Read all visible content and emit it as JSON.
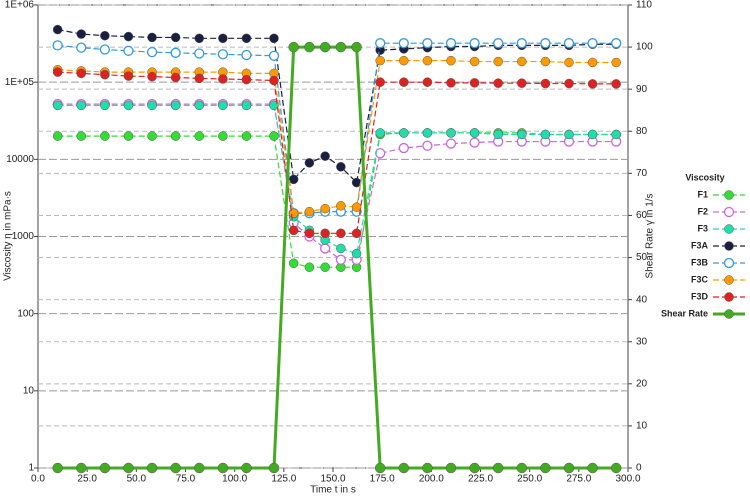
{
  "chart_data": {
    "type": "line",
    "xlabel": "Time t in s",
    "ylabel": "Viscosity η in mPa·s",
    "y2label": "Shear Rate γ̇ in 1/s",
    "legend_title": "Viscosity",
    "legend": "right",
    "log_y": true,
    "grid": true,
    "x": [
      10,
      22,
      34,
      46,
      58,
      70,
      82,
      94,
      106,
      120,
      130,
      138,
      146,
      154,
      162,
      174,
      186,
      198,
      210,
      222,
      234,
      246,
      258,
      270,
      282,
      294
    ],
    "xlim": [
      0,
      300
    ],
    "xticks": [
      {
        "value": 0,
        "label": "0.0"
      },
      {
        "value": 25,
        "label": "25.0"
      },
      {
        "value": 50,
        "label": "50.0"
      },
      {
        "value": 75,
        "label": "75.0"
      },
      {
        "value": 100,
        "label": "100.0"
      },
      {
        "value": 125,
        "label": "125.0"
      },
      {
        "value": 150,
        "label": "150.0"
      },
      {
        "value": 175,
        "label": "175.0"
      },
      {
        "value": 200,
        "label": "200.0"
      },
      {
        "value": 225,
        "label": "225.0"
      },
      {
        "value": 250,
        "label": "250.0"
      },
      {
        "value": 275,
        "label": "275.0"
      },
      {
        "value": 300,
        "label": "300.0"
      }
    ],
    "ylim": [
      1,
      1000000
    ],
    "yticks": [
      1,
      10,
      100,
      1000,
      10000,
      {
        "value": 100000,
        "label": "1E+05"
      },
      {
        "value": 1000000,
        "label": "1E+06"
      }
    ],
    "y2lim": [
      0,
      110
    ],
    "y2ticks": [
      0,
      10,
      20,
      30,
      40,
      50,
      60,
      70,
      80,
      90,
      100,
      110
    ],
    "series": [
      {
        "name": "F1",
        "color": "#33dd33",
        "marker": "filled",
        "values": [
          20000,
          20000,
          20000,
          20000,
          20000,
          20000,
          20000,
          20000,
          20000,
          20000,
          450,
          400,
          400,
          400,
          400,
          21000,
          22000,
          22000,
          22000,
          22000,
          22000,
          22000,
          21000,
          21000,
          21000,
          21000
        ]
      },
      {
        "name": "F2",
        "color": "#cc66dd",
        "marker": "open",
        "values": [
          52000,
          52000,
          52000,
          52000,
          52000,
          52000,
          52000,
          52000,
          52000,
          52000,
          1500,
          1000,
          700,
          500,
          500,
          12000,
          14000,
          15000,
          16000,
          16500,
          17000,
          17000,
          17000,
          17000,
          17000,
          17000
        ]
      },
      {
        "name": "F3",
        "color": "#22ddaa",
        "marker": "filled",
        "values": [
          50000,
          50000,
          50000,
          50000,
          50000,
          50000,
          50000,
          50000,
          50000,
          50000,
          1800,
          1200,
          900,
          700,
          600,
          22000,
          22000,
          22000,
          22000,
          22000,
          21000,
          21000,
          21000,
          21000,
          21000,
          21000
        ]
      },
      {
        "name": "F3A",
        "color": "#1a2040",
        "marker": "filled",
        "values": [
          480000,
          420000,
          400000,
          390000,
          380000,
          380000,
          370000,
          370000,
          370000,
          370000,
          5500,
          9000,
          11000,
          8000,
          5000,
          260000,
          270000,
          280000,
          290000,
          290000,
          300000,
          300000,
          300000,
          300000,
          310000,
          310000
        ]
      },
      {
        "name": "F3B",
        "color": "#3399dd",
        "marker": "open",
        "values": [
          300000,
          280000,
          265000,
          255000,
          245000,
          240000,
          235000,
          230000,
          225000,
          220000,
          2000,
          2000,
          2100,
          2100,
          2100,
          320000,
          320000,
          320000,
          320000,
          320000,
          320000,
          320000,
          320000,
          320000,
          320000,
          320000
        ]
      },
      {
        "name": "F3C",
        "color": "#ff9900",
        "marker": "filled",
        "values": [
          145000,
          140000,
          135000,
          135000,
          135000,
          135000,
          135000,
          135000,
          130000,
          130000,
          2000,
          2100,
          2300,
          2500,
          2400,
          190000,
          190000,
          190000,
          190000,
          185000,
          185000,
          185000,
          185000,
          180000,
          180000,
          180000
        ]
      },
      {
        "name": "F3D",
        "color": "#dd2222",
        "marker": "filled",
        "values": [
          135000,
          130000,
          125000,
          120000,
          118000,
          115000,
          112000,
          110000,
          108000,
          105000,
          1200,
          1100,
          1100,
          1100,
          1100,
          100000,
          100000,
          100000,
          98000,
          98000,
          97000,
          97000,
          96000,
          96000,
          95000,
          95000
        ]
      },
      {
        "name": "Shear Rate",
        "color": "#44aa22",
        "marker": "filled",
        "axis": "y2",
        "values": [
          0,
          0,
          0,
          0,
          0,
          0,
          0,
          0,
          0,
          0,
          100,
          100,
          100,
          100,
          100,
          0,
          0,
          0,
          0,
          0,
          0,
          0,
          0,
          0,
          0,
          0
        ]
      }
    ]
  }
}
